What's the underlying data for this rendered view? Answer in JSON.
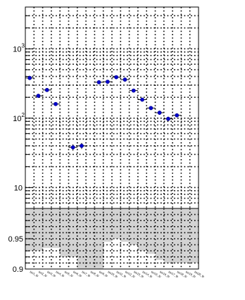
{
  "chart_data": [
    {
      "type": "scatter",
      "yscale": "log",
      "ylim": [
        5,
        4000
      ],
      "y_ticks": [
        10,
        100,
        1000
      ],
      "y_tick_labels": [
        "10",
        "10",
        "10"
      ],
      "y_tick_exponents": [
        "",
        "2",
        "3"
      ],
      "grid": true,
      "grid_style": "dotted",
      "categories": [
        "bin1_tp",
        "bin2_tp",
        "bin3_tp",
        "bin4_tp",
        "bin5_tp",
        "bin6_tp",
        "bin7_tp",
        "bin8_tp",
        "bin9_tp",
        "bin10_tp",
        "bin11_tp",
        "bin12_tp",
        "bin13_tp",
        "bin14_tp",
        "bin15_tp",
        "bin16_tp",
        "bin17_tp",
        "bin18_tp",
        "bin19_tp",
        "bin20_tp"
      ],
      "series": [
        {
          "color": "#0000cc",
          "values": [
            380,
            210,
            255,
            160,
            null,
            38,
            40,
            null,
            330,
            335,
            390,
            360,
            250,
            185,
            140,
            120,
            98,
            110,
            null,
            null
          ],
          "errors": [
            12,
            10,
            12,
            10,
            null,
            4,
            4,
            null,
            12,
            12,
            13,
            13,
            11,
            9,
            8,
            8,
            7,
            7,
            null,
            null
          ]
        }
      ]
    },
    {
      "type": "area",
      "ylim": [
        0.9,
        1.0
      ],
      "y_ticks": [
        0.9,
        0.95
      ],
      "y_tick_labels": [
        "0.9",
        "0.95"
      ],
      "grid": true,
      "grid_style": "dotted",
      "fill_color": "#d3d3d3",
      "values": [
        0.93,
        0.93,
        0.935,
        0.935,
        0.92,
        0.92,
        0.9,
        0.9,
        0.9,
        0.945,
        0.95,
        0.945,
        0.94,
        0.93,
        0.925,
        0.915,
        0.91,
        0.91,
        0.91,
        0.91
      ]
    }
  ]
}
